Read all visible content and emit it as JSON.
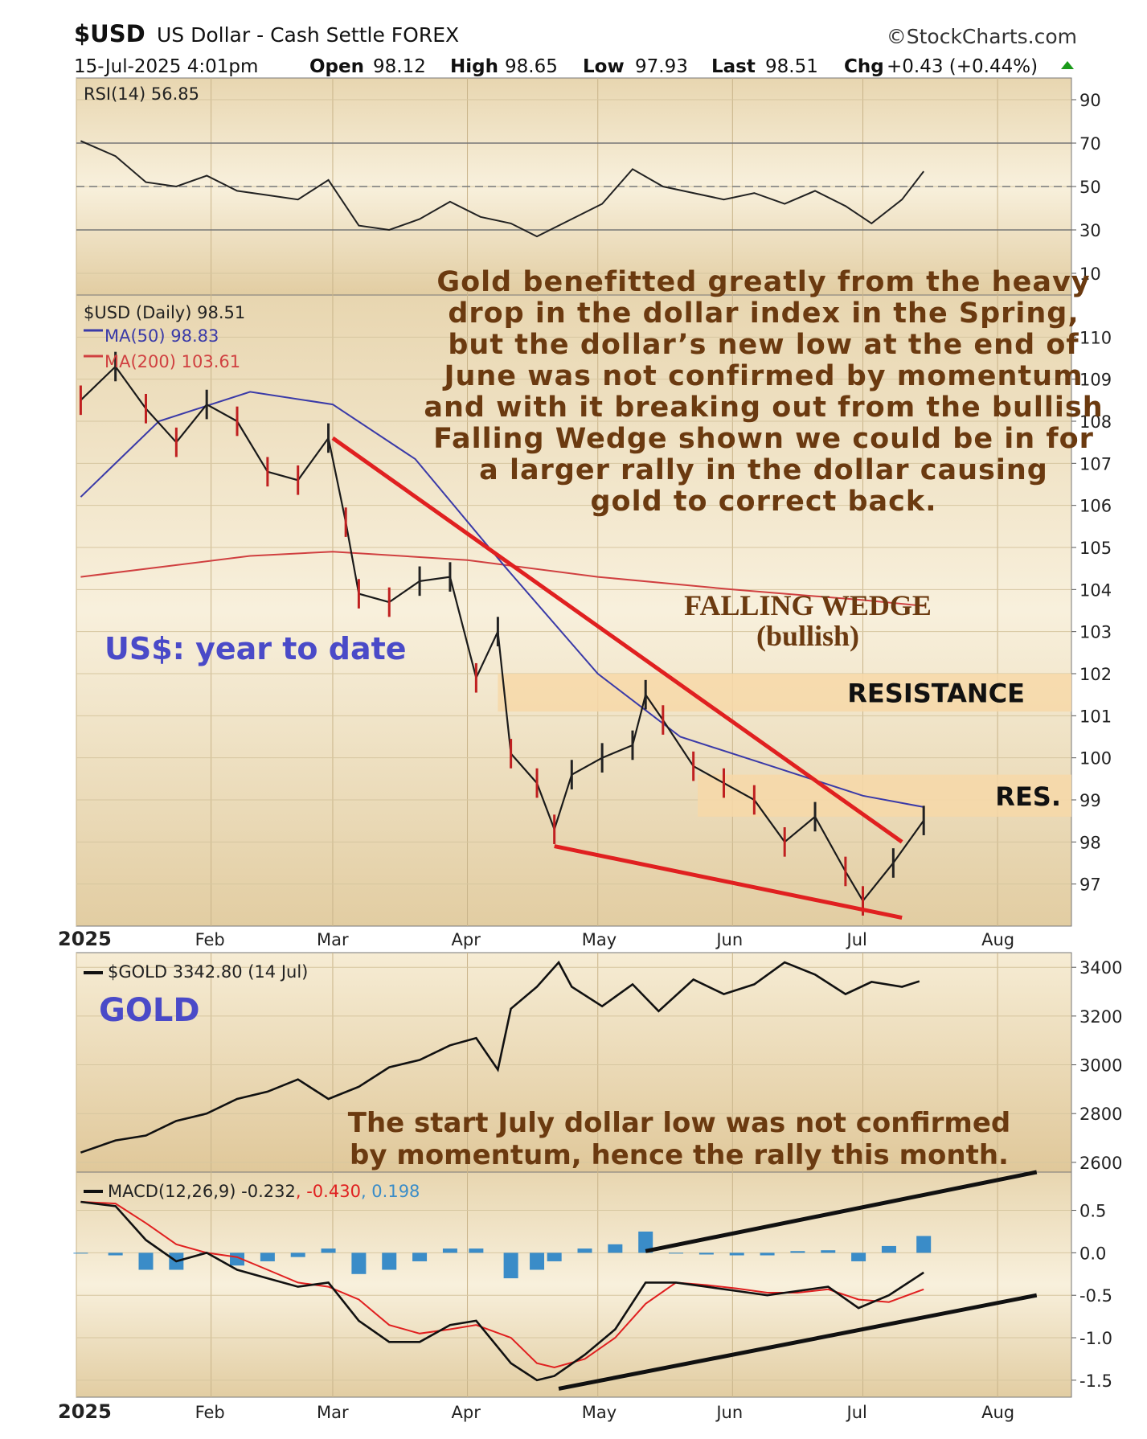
{
  "header": {
    "symbol": "$USD",
    "name": "US Dollar - Cash Settle FOREX",
    "source": "©StockCharts.com",
    "date": "15-Jul-2025 4:01pm",
    "open_label": "Open",
    "open": "98.12",
    "high_label": "High",
    "high": "98.65",
    "low_label": "Low",
    "low": "97.93",
    "last_label": "Last",
    "last": "98.51",
    "chg_label": "Chg",
    "chg": "+0.43 (+0.44%)"
  },
  "colors": {
    "panel_bg": "#efe1bf",
    "ma50": "#3a3aa8",
    "ma200": "#d04040",
    "trendline": "#e02020",
    "annotation": "#6b3a10",
    "zone": "#f7d8a8",
    "macd_hist": "#3a8cc8",
    "signal": "#e02020",
    "label_blue": "#4a4ac8"
  },
  "chart_data": [
    {
      "type": "line",
      "panel": "rsi",
      "legend": "RSI(14) 56.85",
      "ylim": [
        0,
        100
      ],
      "y_ticks": [
        90,
        70,
        50,
        30,
        10
      ],
      "reference_lines": [
        70,
        50,
        30
      ],
      "x": [
        "2025-01-02",
        "2025-01-10",
        "2025-01-17",
        "2025-01-24",
        "2025-01-31",
        "2025-02-07",
        "2025-02-14",
        "2025-02-21",
        "2025-02-28",
        "2025-03-07",
        "2025-03-14",
        "2025-03-21",
        "2025-03-28",
        "2025-04-04",
        "2025-04-11",
        "2025-04-17",
        "2025-04-25",
        "2025-05-02",
        "2025-05-09",
        "2025-05-16",
        "2025-05-23",
        "2025-05-30",
        "2025-06-06",
        "2025-06-13",
        "2025-06-20",
        "2025-06-27",
        "2025-07-03",
        "2025-07-10",
        "2025-07-15"
      ],
      "values": [
        71,
        64,
        52,
        50,
        55,
        48,
        46,
        44,
        53,
        32,
        30,
        35,
        43,
        36,
        33,
        27,
        35,
        42,
        58,
        50,
        47,
        44,
        47,
        42,
        48,
        41,
        33,
        44,
        57
      ]
    },
    {
      "type": "line",
      "panel": "price",
      "legend": "$USD (Daily) 98.51",
      "ylim": [
        96,
        111
      ],
      "y_ticks": [
        110,
        109,
        108,
        107,
        106,
        105,
        104,
        103,
        102,
        101,
        100,
        99,
        98,
        97
      ],
      "x_ticks": [
        "2025",
        "Feb",
        "Mar",
        "Apr",
        "May",
        "Jun",
        "Jul",
        "Aug"
      ],
      "x": [
        "2025-01-02",
        "2025-01-10",
        "2025-01-17",
        "2025-01-24",
        "2025-01-31",
        "2025-02-07",
        "2025-02-14",
        "2025-02-21",
        "2025-02-28",
        "2025-03-04",
        "2025-03-07",
        "2025-03-14",
        "2025-03-21",
        "2025-03-28",
        "2025-04-03",
        "2025-04-08",
        "2025-04-11",
        "2025-04-17",
        "2025-04-21",
        "2025-04-25",
        "2025-05-02",
        "2025-05-09",
        "2025-05-12",
        "2025-05-16",
        "2025-05-23",
        "2025-05-30",
        "2025-06-06",
        "2025-06-13",
        "2025-06-20",
        "2025-06-27",
        "2025-07-01",
        "2025-07-08",
        "2025-07-15"
      ],
      "values": [
        108.5,
        109.3,
        108.3,
        107.5,
        108.4,
        108.0,
        106.8,
        106.6,
        107.6,
        105.6,
        103.9,
        103.7,
        104.2,
        104.3,
        101.9,
        103.0,
        100.1,
        99.4,
        98.3,
        99.6,
        100.0,
        100.3,
        101.5,
        100.9,
        99.8,
        99.4,
        99.0,
        98.0,
        98.6,
        97.3,
        96.6,
        97.5,
        98.51
      ],
      "series": [
        {
          "name": "MA(50) 98.83",
          "x": [
            "2025-01-02",
            "2025-01-20",
            "2025-02-10",
            "2025-03-01",
            "2025-03-20",
            "2025-04-10",
            "2025-05-01",
            "2025-05-20",
            "2025-06-10",
            "2025-07-01",
            "2025-07-15"
          ],
          "values": [
            106.2,
            108.0,
            108.7,
            108.4,
            107.1,
            104.5,
            102.0,
            100.5,
            99.8,
            99.1,
            98.83
          ]
        },
        {
          "name": "MA(200) 103.61",
          "x": [
            "2025-01-02",
            "2025-02-10",
            "2025-03-01",
            "2025-04-01",
            "2025-05-01",
            "2025-06-01",
            "2025-07-01",
            "2025-07-15"
          ],
          "values": [
            104.3,
            104.8,
            104.9,
            104.7,
            104.3,
            104.0,
            103.75,
            103.61
          ]
        }
      ],
      "trendlines": [
        {
          "x": [
            "2025-03-01",
            "2025-07-10"
          ],
          "values": [
            107.6,
            98.0
          ]
        },
        {
          "x": [
            "2025-04-21",
            "2025-07-10"
          ],
          "values": [
            97.9,
            96.2
          ]
        }
      ],
      "zones": [
        {
          "label": "RESISTANCE",
          "ylim": [
            101.1,
            102.0
          ]
        },
        {
          "label": "RES.",
          "ylim": [
            98.6,
            99.6
          ]
        }
      ],
      "annotations": {
        "note": [
          "Gold benefitted greatly from the heavy",
          "drop in the dollar index in the Spring,",
          "but the dollar’s new low at the end of",
          "June was not confirmed by momentum",
          "and with it breaking out from the bullish",
          "Falling Wedge shown we could be in for",
          "a larger rally in the dollar causing",
          "gold to correct back."
        ],
        "wedge_title": "FALLING WEDGE",
        "wedge_sub": "(bullish)",
        "ytd": "US$: year to date"
      }
    },
    {
      "type": "line",
      "panel": "gold",
      "legend": "$GOLD 3342.80 (14 Jul)",
      "label": "GOLD",
      "ylim": [
        2560,
        3460
      ],
      "y_ticks": [
        3400,
        3200,
        3000,
        2800,
        2600
      ],
      "x": [
        "2025-01-02",
        "2025-01-10",
        "2025-01-17",
        "2025-01-24",
        "2025-01-31",
        "2025-02-07",
        "2025-02-14",
        "2025-02-21",
        "2025-02-28",
        "2025-03-07",
        "2025-03-14",
        "2025-03-21",
        "2025-03-28",
        "2025-04-03",
        "2025-04-08",
        "2025-04-11",
        "2025-04-17",
        "2025-04-22",
        "2025-04-25",
        "2025-05-02",
        "2025-05-09",
        "2025-05-15",
        "2025-05-23",
        "2025-05-30",
        "2025-06-06",
        "2025-06-13",
        "2025-06-20",
        "2025-06-27",
        "2025-07-03",
        "2025-07-10",
        "2025-07-14"
      ],
      "values": [
        2640,
        2690,
        2710,
        2770,
        2800,
        2860,
        2890,
        2940,
        2860,
        2910,
        2990,
        3020,
        3080,
        3110,
        2980,
        3230,
        3320,
        3420,
        3320,
        3240,
        3330,
        3220,
        3350,
        3290,
        3330,
        3420,
        3370,
        3290,
        3340,
        3320,
        3342.8
      ],
      "annotation": [
        "The start July dollar low was not confirmed",
        "by momentum, hence the rally this month."
      ]
    },
    {
      "type": "line",
      "panel": "macd",
      "legend_prefix": "MACD(12,26,9) ",
      "legend_macd": "-0.232",
      "legend_signal": "-0.430",
      "legend_hist": "0.198",
      "ylim": [
        -1.7,
        0.95
      ],
      "y_ticks": [
        "0.5",
        "0.0",
        "-0.5",
        "-1.0",
        "-1.5"
      ],
      "x_ticks": [
        "2025",
        "Feb",
        "Mar",
        "Apr",
        "May",
        "Jun",
        "Jul",
        "Aug"
      ],
      "x": [
        "2025-01-02",
        "2025-01-10",
        "2025-01-17",
        "2025-01-24",
        "2025-01-31",
        "2025-02-07",
        "2025-02-14",
        "2025-02-21",
        "2025-02-28",
        "2025-03-07",
        "2025-03-14",
        "2025-03-21",
        "2025-03-28",
        "2025-04-03",
        "2025-04-11",
        "2025-04-17",
        "2025-04-21",
        "2025-04-28",
        "2025-05-05",
        "2025-05-12",
        "2025-05-19",
        "2025-05-26",
        "2025-06-02",
        "2025-06-09",
        "2025-06-16",
        "2025-06-23",
        "2025-06-30",
        "2025-07-07",
        "2025-07-15"
      ],
      "values": [
        0.6,
        0.55,
        0.15,
        -0.1,
        0.0,
        -0.2,
        -0.3,
        -0.4,
        -0.35,
        -0.8,
        -1.05,
        -1.05,
        -0.85,
        -0.8,
        -1.3,
        -1.5,
        -1.45,
        -1.2,
        -0.9,
        -0.35,
        -0.35,
        -0.4,
        -0.45,
        -0.5,
        -0.45,
        -0.4,
        -0.65,
        -0.5,
        -0.232
      ],
      "series": [
        {
          "name": "Signal",
          "values": [
            0.6,
            0.58,
            0.35,
            0.1,
            0.0,
            -0.05,
            -0.2,
            -0.35,
            -0.4,
            -0.55,
            -0.85,
            -0.95,
            -0.9,
            -0.85,
            -1.0,
            -1.3,
            -1.35,
            -1.25,
            -1.0,
            -0.6,
            -0.35,
            -0.38,
            -0.42,
            -0.47,
            -0.47,
            -0.43,
            -0.55,
            -0.58,
            -0.43
          ]
        },
        {
          "name": "Histogram",
          "values": [
            0.0,
            -0.03,
            -0.2,
            -0.2,
            0.0,
            -0.15,
            -0.1,
            -0.05,
            0.05,
            -0.25,
            -0.2,
            -0.1,
            0.05,
            0.05,
            -0.3,
            -0.2,
            -0.1,
            0.05,
            0.1,
            0.25,
            0.0,
            -0.02,
            -0.03,
            -0.03,
            0.02,
            0.03,
            -0.1,
            0.08,
            0.198
          ]
        }
      ],
      "trendlines": [
        {
          "x": [
            "2025-05-12",
            "2025-08-10"
          ],
          "values": [
            0.02,
            0.95
          ]
        },
        {
          "x": [
            "2025-04-22",
            "2025-08-10"
          ],
          "values": [
            -1.6,
            -0.5
          ]
        }
      ]
    }
  ]
}
